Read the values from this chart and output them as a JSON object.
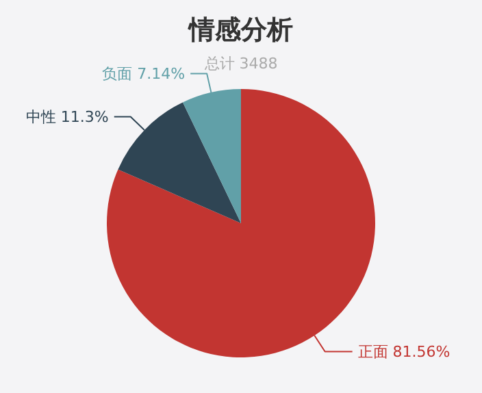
{
  "chart_data": {
    "type": "pie",
    "title": "情感分析",
    "subtitle": "总计 3488",
    "categories": [
      "正面",
      "中性",
      "负面"
    ],
    "values": [
      81.56,
      11.3,
      7.14
    ],
    "value_labels": [
      "81.56%",
      "11.3%",
      "7.14%"
    ],
    "colors": [
      "#c23531",
      "#2f4554",
      "#61a0a8"
    ]
  }
}
